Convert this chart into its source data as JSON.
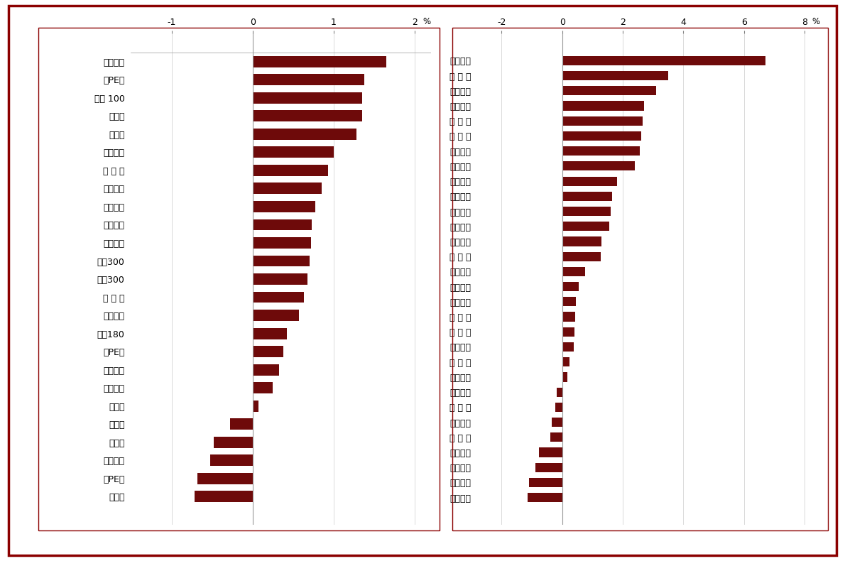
{
  "left_categories": [
    "深证成指",
    "低PE股",
    "深证 100",
    "绩优股",
    "高价股",
    "大盘指数",
    "大 市 值",
    "成长指数",
    "中盘指数",
    "深证综指",
    "价值指数",
    "沪深300",
    "沪深300",
    "小 市 值",
    "小盘指数",
    "上证180",
    "中PE股",
    "上证指数",
    "上证５０",
    "中价股",
    "低价股",
    "微利股",
    "中小板指",
    "高PE股",
    "亏损股"
  ],
  "left_values": [
    1.65,
    1.38,
    1.35,
    1.35,
    1.28,
    1.0,
    0.93,
    0.85,
    0.77,
    0.73,
    0.72,
    0.7,
    0.68,
    0.63,
    0.57,
    0.42,
    0.38,
    0.33,
    0.25,
    0.07,
    -0.28,
    -0.48,
    -0.52,
    -0.68,
    -0.72
  ],
  "right_categories": [
    "有色金属",
    "房 地 产",
    "传播文化",
    "其它制造",
    "金 属 类",
    "医 药 类",
    "木材家俱",
    "金融保险",
    "农林牧渔",
    "金属制品",
    "非金属类",
    "造纸印刷",
    "社会服务",
    "制 造 业",
    "其它机械",
    "黑色金属",
    "石油化工",
    "采 掘 业",
    "机 械 类",
    "电器器材",
    "电 子 类",
    "食品饮料",
    "运输设备",
    "建 筑 业",
    "批发零售",
    "综 合 类",
    "运输仓储",
    "纺织服装",
    "信息技术",
    "公用事业"
  ],
  "right_values": [
    6.7,
    3.5,
    3.1,
    2.7,
    2.65,
    2.6,
    2.55,
    2.4,
    1.8,
    1.65,
    1.6,
    1.55,
    1.3,
    1.28,
    0.75,
    0.55,
    0.45,
    0.42,
    0.4,
    0.38,
    0.25,
    0.18,
    -0.18,
    -0.22,
    -0.35,
    -0.4,
    -0.78,
    -0.88,
    -1.1,
    -1.15
  ],
  "bar_color": "#6e0a0a",
  "left_xlim": [
    -1.5,
    2.2
  ],
  "right_xlim": [
    -2.8,
    8.5
  ],
  "left_xticks": [
    -1,
    0,
    1,
    2
  ],
  "right_xticks": [
    -2,
    0,
    2,
    4,
    6,
    8
  ],
  "background_color": "#ffffff",
  "border_color": "#8b0000",
  "outer_border_color": "#8b0000",
  "inner_border_color": "#8b0000"
}
